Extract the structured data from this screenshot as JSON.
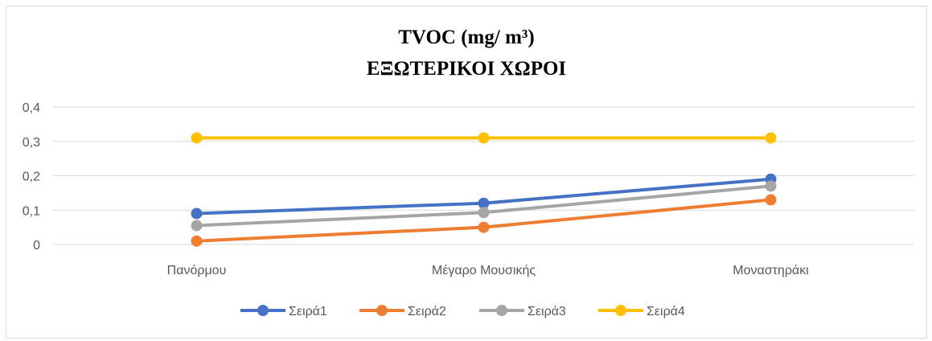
{
  "chart_data": {
    "type": "line",
    "title_line1": "TVOC (mg/ m³)",
    "title_line2": "ΕΞΩΤΕΡΙΚΟΙ ΧΩΡΟΙ",
    "categories": [
      "Πανόρμου",
      "Μέγαρο Μουσικής",
      "Μοναστηράκι"
    ],
    "ylim": [
      0,
      0.4
    ],
    "yticks": [
      "0",
      "0,1",
      "0,2",
      "0,3",
      "0,4"
    ],
    "ytick_values": [
      0,
      0.1,
      0.2,
      0.3,
      0.4
    ],
    "grid": true,
    "legend_position": "bottom",
    "series": [
      {
        "name": "Σειρά1",
        "color": "#4472C4",
        "values": [
          0.09,
          0.12,
          0.19
        ]
      },
      {
        "name": "Σειρά2",
        "color": "#ED7D31",
        "values": [
          0.01,
          0.05,
          0.13
        ]
      },
      {
        "name": "Σειρά3",
        "color": "#A5A5A5",
        "values": [
          0.055,
          0.093,
          0.17
        ]
      },
      {
        "name": "Σειρά4",
        "color": "#FFC000",
        "values": [
          0.31,
          0.31,
          0.31
        ]
      }
    ]
  }
}
